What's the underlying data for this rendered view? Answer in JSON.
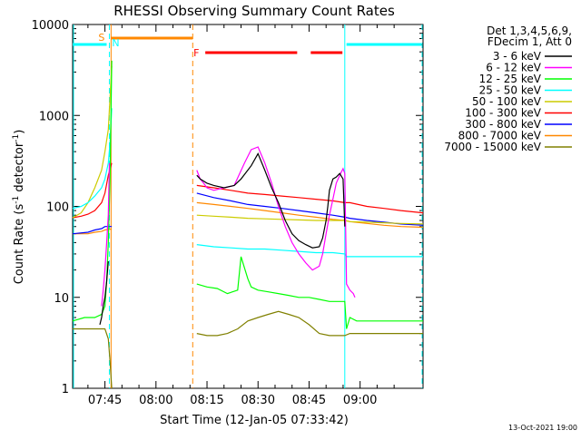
{
  "chart_data": {
    "type": "line",
    "title": "RHESSI Observing Summary Count Rates",
    "xlabel": "Start Time (12-Jan-05 07:33:42)",
    "ylabel_main": "Count Rate (s",
    "ylabel_sup1": "-1",
    "ylabel_mid": " detector",
    "ylabel_sup2": "-1",
    "ylabel_end": ")",
    "yscale": "log",
    "ylim": [
      1,
      10000
    ],
    "xlim_minutes": [
      -9.5,
      93.5
    ],
    "x_ticks": [
      {
        "label": "07:45",
        "minute": 0
      },
      {
        "label": "08:00",
        "minute": 15
      },
      {
        "label": "08:15",
        "minute": 30
      },
      {
        "label": "08:30",
        "minute": 45
      },
      {
        "label": "08:45",
        "minute": 60
      },
      {
        "label": "09:00",
        "minute": 75
      }
    ],
    "y_ticks": [
      {
        "label": "1",
        "value": 1
      },
      {
        "label": "10",
        "value": 10
      },
      {
        "label": "100",
        "value": 100
      },
      {
        "label": "1000",
        "value": 1000
      },
      {
        "label": "10000",
        "value": 10000
      }
    ],
    "legend_header": [
      "Det 1,3,4,5,6,9,",
      "FDecim 1, Att 0"
    ],
    "legend_placement": "right",
    "series": [
      {
        "name": "3 - 6 keV",
        "color": "#000000",
        "x": [
          -1.5,
          -1,
          -0.5,
          0,
          0.5,
          1,
          27,
          28,
          29,
          30,
          32,
          35,
          38,
          40,
          43,
          45,
          47,
          49,
          51,
          53,
          55,
          57,
          59,
          61,
          63,
          64,
          65,
          65.5,
          66,
          67,
          68,
          69,
          70,
          70.5
        ],
        "y": [
          5,
          6,
          8,
          10,
          15,
          25,
          220,
          200,
          190,
          180,
          170,
          160,
          170,
          200,
          280,
          380,
          250,
          160,
          110,
          70,
          50,
          42,
          38,
          35,
          36,
          45,
          70,
          100,
          150,
          200,
          210,
          230,
          200,
          60
        ]
      },
      {
        "name": "6 - 12 keV",
        "color": "#ff00ff",
        "x": [
          -1,
          -0.5,
          0,
          0.5,
          1,
          1.3,
          27,
          28,
          29,
          30,
          32,
          35,
          38,
          41,
          43,
          45,
          47,
          49,
          51,
          53,
          55,
          57,
          59,
          61,
          63,
          64,
          65,
          66,
          67,
          68,
          69,
          70,
          70.5,
          71,
          72,
          73,
          73.5
        ],
        "y": [
          8,
          12,
          20,
          40,
          80,
          300,
          250,
          200,
          180,
          160,
          150,
          160,
          170,
          300,
          420,
          450,
          300,
          180,
          100,
          60,
          40,
          30,
          24,
          20,
          22,
          30,
          50,
          80,
          120,
          180,
          220,
          260,
          230,
          14,
          12,
          11,
          10
        ]
      },
      {
        "name": "12 - 25 keV",
        "color": "#00ff00",
        "x": [
          -9.5,
          -6,
          -3,
          -1,
          0,
          0.5,
          1,
          1.5,
          2,
          27,
          30,
          33,
          36,
          39,
          40,
          42,
          43,
          45,
          48,
          51,
          54,
          57,
          60,
          63,
          66,
          69,
          70.5,
          71,
          72,
          74,
          76,
          78,
          80,
          85,
          90,
          93.5
        ],
        "y": [
          5.5,
          6,
          6,
          6.5,
          8,
          15,
          40,
          200,
          4000,
          14,
          13,
          12.5,
          11,
          12,
          28,
          16,
          13,
          12,
          11.5,
          11,
          10.5,
          10,
          10,
          9.5,
          9,
          9,
          9,
          4.5,
          6,
          5.5,
          5.5,
          5.5,
          5.5,
          5.5,
          5.5,
          5.5
        ]
      },
      {
        "name": "25 - 50 keV",
        "color": "#00ffff",
        "x": [
          -9.5,
          -7,
          -5,
          -3,
          -1,
          0,
          1,
          1.5,
          2,
          27,
          32,
          37,
          42,
          47,
          52,
          57,
          62,
          67,
          70.5,
          71,
          76,
          81,
          86,
          93.5
        ],
        "y": [
          95,
          100,
          110,
          130,
          160,
          200,
          300,
          500,
          1200,
          38,
          36,
          35,
          34,
          34,
          33,
          32,
          31,
          31,
          30,
          28,
          28,
          28,
          28,
          28
        ]
      },
      {
        "name": "50 - 100 keV",
        "color": "#cccc00",
        "x": [
          -9.5,
          -7,
          -5,
          -3,
          -1,
          0,
          1,
          2,
          27,
          32,
          37,
          42,
          47,
          52,
          57,
          62,
          67,
          70.5,
          72,
          77,
          82,
          87,
          93.5
        ],
        "y": [
          75,
          85,
          110,
          160,
          250,
          400,
          700,
          3500,
          80,
          78,
          76,
          74,
          73,
          72,
          71,
          70,
          70,
          70,
          68,
          67,
          66,
          65,
          64
        ]
      },
      {
        "name": "100 - 300 keV",
        "color": "#ff0000",
        "x": [
          -9.5,
          -7,
          -5,
          -3,
          -1,
          0,
          1,
          2,
          27,
          32,
          37,
          42,
          47,
          52,
          57,
          62,
          67,
          70.5,
          72,
          77,
          82,
          87,
          93.5
        ],
        "y": [
          75,
          78,
          82,
          90,
          110,
          140,
          220,
          300,
          170,
          160,
          150,
          140,
          135,
          130,
          125,
          120,
          115,
          110,
          110,
          100,
          95,
          90,
          85
        ]
      },
      {
        "name": "300 - 800 keV",
        "color": "#0000ff",
        "x": [
          -9.5,
          -5,
          -3,
          -1,
          0,
          1,
          2,
          27,
          32,
          37,
          42,
          47,
          52,
          57,
          62,
          67,
          70.5,
          72,
          77,
          82,
          87,
          93.5
        ],
        "y": [
          50,
          52,
          55,
          57,
          60,
          60,
          60,
          140,
          125,
          115,
          105,
          100,
          95,
          90,
          85,
          80,
          76,
          74,
          70,
          67,
          64,
          62
        ]
      },
      {
        "name": "800 - 7000 keV",
        "color": "#ff8800",
        "x": [
          -9.5,
          -5,
          -3,
          -1,
          0,
          1,
          2,
          27,
          32,
          37,
          42,
          47,
          52,
          57,
          62,
          67,
          70.5,
          72,
          77,
          82,
          87,
          93.5
        ],
        "y": [
          50,
          50,
          52,
          53,
          55,
          56,
          56,
          110,
          105,
          100,
          95,
          90,
          85,
          80,
          76,
          72,
          70,
          68,
          65,
          62,
          60,
          59
        ]
      },
      {
        "name": "7000 - 15000 keV",
        "color": "#808000",
        "x": [
          -9.5,
          -5,
          -3,
          -1,
          0,
          1,
          1.5,
          2,
          27,
          30,
          33,
          36,
          39,
          42,
          45,
          48,
          51,
          54,
          57,
          60,
          63,
          66,
          69,
          70.5,
          72,
          76,
          80,
          85,
          90,
          93.5
        ],
        "y": [
          4.5,
          4.5,
          4.5,
          4.5,
          4.5,
          3.5,
          2,
          1,
          4,
          3.8,
          3.8,
          4,
          4.5,
          5.5,
          6,
          6.5,
          7,
          6.5,
          6,
          5,
          4,
          3.8,
          3.8,
          3.8,
          4,
          4,
          4,
          4,
          4,
          4
        ]
      }
    ],
    "flags": {
      "saa_label": "S",
      "night_label": "N",
      "flare_label": "F",
      "saa_color": "#ff8800",
      "night_color": "#00ffff",
      "flare_color": "#ff0000",
      "saa_minutes": [
        1.8,
        25.8
      ],
      "night_minutes": [
        1.3,
        70.5
      ],
      "flare_minutes": [
        [
          29.5,
          56.5
        ],
        [
          60.5,
          69.8
        ]
      ],
      "night_bar_minutes": [
        [
          -9.5,
          0.5
        ],
        [
          71,
          93
        ]
      ]
    },
    "timestamp": "13-Oct-2021 19:00"
  }
}
